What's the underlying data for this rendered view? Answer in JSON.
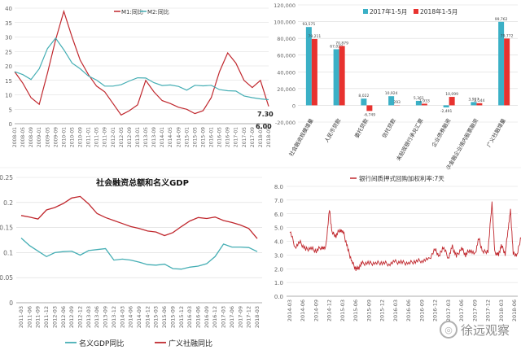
{
  "watermark": {
    "text": "徐远观察"
  },
  "colors": {
    "red": "#c0282e",
    "teal": "#45aeb4",
    "brightRed": "#e8322f",
    "tealBar": "#3bb0c6",
    "gray": "#666666",
    "grid": "#d9d9d9"
  },
  "chart_data": [
    {
      "id": "m1m2",
      "type": "line",
      "title": "",
      "ylim": [
        0,
        40
      ],
      "yticks": [
        0,
        5,
        10,
        15,
        20,
        25,
        30,
        35,
        40
      ],
      "grid": true,
      "legend_position": "top",
      "xticks": [
        "2008-01",
        "2008-05",
        "2008-09",
        "2009-01",
        "2009-05",
        "2009-09",
        "2010-01",
        "2010-05",
        "2010-09",
        "2011-01",
        "2011-05",
        "2011-09",
        "2012-01",
        "2012-05",
        "2012-09",
        "2013-01",
        "2013-05",
        "2013-09",
        "2014-01",
        "2014-05",
        "2014-09",
        "2015-01",
        "2015-05",
        "2015-09",
        "2016-01",
        "2016-05",
        "2016-09",
        "2017-01",
        "2017-05",
        "2017-09",
        "2018-01",
        "2018-05"
      ],
      "series": [
        {
          "name": "M1:同比",
          "color": "#c0282e",
          "points": [
            [
              0,
              18
            ],
            [
              1,
              14
            ],
            [
              2,
              9
            ],
            [
              3,
              6.7
            ],
            [
              4,
              17.5
            ],
            [
              5,
              29
            ],
            [
              6,
              38.9
            ],
            [
              7,
              30
            ],
            [
              8,
              22
            ],
            [
              9,
              17
            ],
            [
              10,
              13
            ],
            [
              11,
              11
            ],
            [
              12,
              7
            ],
            [
              13,
              3
            ],
            [
              14,
              4.5
            ],
            [
              15,
              6.5
            ],
            [
              16,
              15
            ],
            [
              17,
              11
            ],
            [
              18,
              8
            ],
            [
              19,
              7
            ],
            [
              20,
              5.7
            ],
            [
              21,
              5
            ],
            [
              22,
              3.5
            ],
            [
              23,
              4.5
            ],
            [
              24,
              9
            ],
            [
              25,
              18
            ],
            [
              26,
              24.5
            ],
            [
              27,
              21
            ],
            [
              28,
              15
            ],
            [
              29,
              12.5
            ],
            [
              30,
              15
            ],
            [
              31,
              6
            ]
          ]
        },
        {
          "name": "M2:同比",
          "color": "#45aeb4",
          "points": [
            [
              0,
              18
            ],
            [
              1,
              17
            ],
            [
              2,
              15.3
            ],
            [
              3,
              19
            ],
            [
              4,
              26
            ],
            [
              5,
              29.6
            ],
            [
              6,
              25.6
            ],
            [
              7,
              21
            ],
            [
              8,
              19
            ],
            [
              9,
              16.5
            ],
            [
              10,
              15.1
            ],
            [
              11,
              13
            ],
            [
              12,
              13
            ],
            [
              13,
              13.5
            ],
            [
              14,
              14.8
            ],
            [
              15,
              15.9
            ],
            [
              16,
              15.8
            ],
            [
              17,
              14.2
            ],
            [
              18,
              13.2
            ],
            [
              19,
              13.4
            ],
            [
              20,
              12.9
            ],
            [
              21,
              11.6
            ],
            [
              22,
              13.3
            ],
            [
              23,
              13.1
            ],
            [
              24,
              13.3
            ],
            [
              25,
              11.8
            ],
            [
              26,
              11.4
            ],
            [
              27,
              11.3
            ],
            [
              28,
              9.6
            ],
            [
              29,
              9.0
            ],
            [
              30,
              8.6
            ],
            [
              31,
              8.3
            ]
          ]
        }
      ],
      "annotations": [
        {
          "text": "7.30"
        },
        {
          "text": "6.00"
        }
      ]
    },
    {
      "id": "loans",
      "type": "bar",
      "title": "",
      "ylim": [
        -20000,
        120000
      ],
      "yticks": [
        -20000,
        0,
        20000,
        40000,
        60000,
        80000,
        100000,
        120000
      ],
      "ytick_labels": [
        "-20,000",
        "0",
        "20,000",
        "40,000",
        "60,000",
        "80,000",
        "100,000",
        "120,000"
      ],
      "grid": true,
      "legend_position": "top",
      "categories": [
        "社会融资规模增量",
        "人民币贷款",
        "委托贷款",
        "信托贷款",
        "未贴现银行承兑汇票",
        "企业债券融资",
        "非金融企业境内股票融资",
        "广义社融增量"
      ],
      "series": [
        {
          "name": "2017年1-5月",
          "color": "#3bb0c6",
          "values": [
            93575,
            67022,
            8022,
            10924,
            5361,
            -2491,
            3927,
            99762
          ]
        },
        {
          "name": "2018年1-5月",
          "color": "#e8322f",
          "values": [
            79211,
            70879,
            -6749,
            293,
            1933,
            10099,
            2544,
            79772
          ]
        }
      ],
      "data_labels_2017": [
        "93,575",
        "67,022",
        "8,022",
        "10,924",
        "5,361",
        "-2,491",
        "3,927",
        "99,762"
      ],
      "data_labels_2018": [
        "79,211",
        "70,879",
        "-6,749",
        "293",
        "1,933",
        "10,099",
        "2,544",
        "79,772"
      ]
    },
    {
      "id": "gdp",
      "type": "line",
      "title": "社会融资总额和名义GDP",
      "ylim": [
        0,
        0.25
      ],
      "yticks": [
        0,
        0.05,
        0.1,
        0.15,
        0.2,
        0.25
      ],
      "ytick_labels": [
        "0",
        "0.05",
        "0.1",
        "0.15",
        "0.2",
        "0.25"
      ],
      "grid": true,
      "legend_position": "bottom",
      "xticks": [
        "2011-03",
        "2011-06",
        "2011-09",
        "2011-12",
        "2012-03",
        "2012-06",
        "2012-09",
        "2012-12",
        "2013-03",
        "2013-06",
        "2013-09",
        "2013-12",
        "2014-03",
        "2014-06",
        "2014-09",
        "2014-12",
        "2015-03",
        "2015-06",
        "2015-09",
        "2015-12",
        "2016-03",
        "2016-06",
        "2016-09",
        "2016-12",
        "2017-03",
        "2017-06",
        "2017-09",
        "2017-12",
        "2018-03"
      ],
      "series": [
        {
          "name": "名义GDP同比",
          "color": "#45aeb4",
          "values": [
            0.129,
            0.114,
            0.103,
            0.092,
            0.1,
            0.102,
            0.103,
            0.095,
            0.104,
            0.106,
            0.108,
            0.085,
            0.087,
            0.085,
            0.081,
            0.076,
            0.075,
            0.077,
            0.068,
            0.067,
            0.071,
            0.073,
            0.078,
            0.092,
            0.117,
            0.111,
            0.111,
            0.11,
            0.102
          ]
        },
        {
          "name": "广义社融同比",
          "color": "#c0282e",
          "values": [
            0.174,
            0.171,
            0.167,
            0.185,
            0.19,
            0.198,
            0.209,
            0.212,
            0.197,
            0.178,
            0.17,
            0.164,
            0.158,
            0.152,
            0.148,
            0.143,
            0.141,
            0.134,
            0.14,
            0.152,
            0.163,
            0.17,
            0.168,
            0.171,
            0.164,
            0.16,
            0.155,
            0.148,
            0.128
          ]
        }
      ]
    },
    {
      "id": "repo",
      "type": "line",
      "title": "银行间质押式回购加权利率:7天",
      "ylim": [
        0,
        8
      ],
      "yticks": [
        0,
        1,
        2,
        3,
        4,
        5,
        6,
        7,
        8
      ],
      "ytick_labels": [
        "0.0",
        "1.0",
        "2.0",
        "3.0",
        "4.0",
        "5.0",
        "6.0",
        "7.0",
        "8.0"
      ],
      "grid": true,
      "legend_position": "top",
      "xticks": [
        "2014-03",
        "2014-06",
        "2014-09",
        "2014-12",
        "2015-03",
        "2015-06",
        "2015-09",
        "2015-12",
        "2016-03",
        "2016-06",
        "2016-09",
        "2016-12",
        "2017-03",
        "2017-06",
        "2017-09",
        "2017-12",
        "2018-03",
        "2018-06"
      ],
      "series": [
        {
          "name": "银行间质押式回购加权利率:7天",
          "color": "#c0282e",
          "points": [
            [
              0,
              4.8
            ],
            [
              0.4,
              3.6
            ],
            [
              0.8,
              3.9
            ],
            [
              1.2,
              3.4
            ],
            [
              1.6,
              3.5
            ],
            [
              2.0,
              3.3
            ],
            [
              2.4,
              3.6
            ],
            [
              2.7,
              3.4
            ],
            [
              3.0,
              6.3
            ],
            [
              3.2,
              4.6
            ],
            [
              3.5,
              4.4
            ],
            [
              3.8,
              4.9
            ],
            [
              4.1,
              4.5
            ],
            [
              4.4,
              3.4
            ],
            [
              4.7,
              2.5
            ],
            [
              5.0,
              2.0
            ],
            [
              5.2,
              2.1
            ],
            [
              5.5,
              2.4
            ],
            [
              6.0,
              2.4
            ],
            [
              6.5,
              2.4
            ],
            [
              7.0,
              2.45
            ],
            [
              7.5,
              2.35
            ],
            [
              8.0,
              2.5
            ],
            [
              8.5,
              2.45
            ],
            [
              9.0,
              2.4
            ],
            [
              9.5,
              2.55
            ],
            [
              10.0,
              2.6
            ],
            [
              10.5,
              2.65
            ],
            [
              11.0,
              3.4
            ],
            [
              11.3,
              2.9
            ],
            [
              11.6,
              3.6
            ],
            [
              12.0,
              2.8
            ],
            [
              12.3,
              3.6
            ],
            [
              12.6,
              2.9
            ],
            [
              13.0,
              3.5
            ],
            [
              13.3,
              3.0
            ],
            [
              13.6,
              3.4
            ],
            [
              14.0,
              3.0
            ],
            [
              14.3,
              4.2
            ],
            [
              14.6,
              3.2
            ],
            [
              15.0,
              3.3
            ],
            [
              15.3,
              6.9
            ],
            [
              15.5,
              3.2
            ],
            [
              15.8,
              3.0
            ],
            [
              16.0,
              3.7
            ],
            [
              16.3,
              3.1
            ],
            [
              16.5,
              4.8
            ],
            [
              16.7,
              6.2
            ],
            [
              16.9,
              3.1
            ],
            [
              17.2,
              3.0
            ],
            [
              17.5,
              4.4
            ],
            [
              17.7,
              3.0
            ],
            [
              18.0,
              3.2
            ]
          ]
        }
      ]
    }
  ]
}
